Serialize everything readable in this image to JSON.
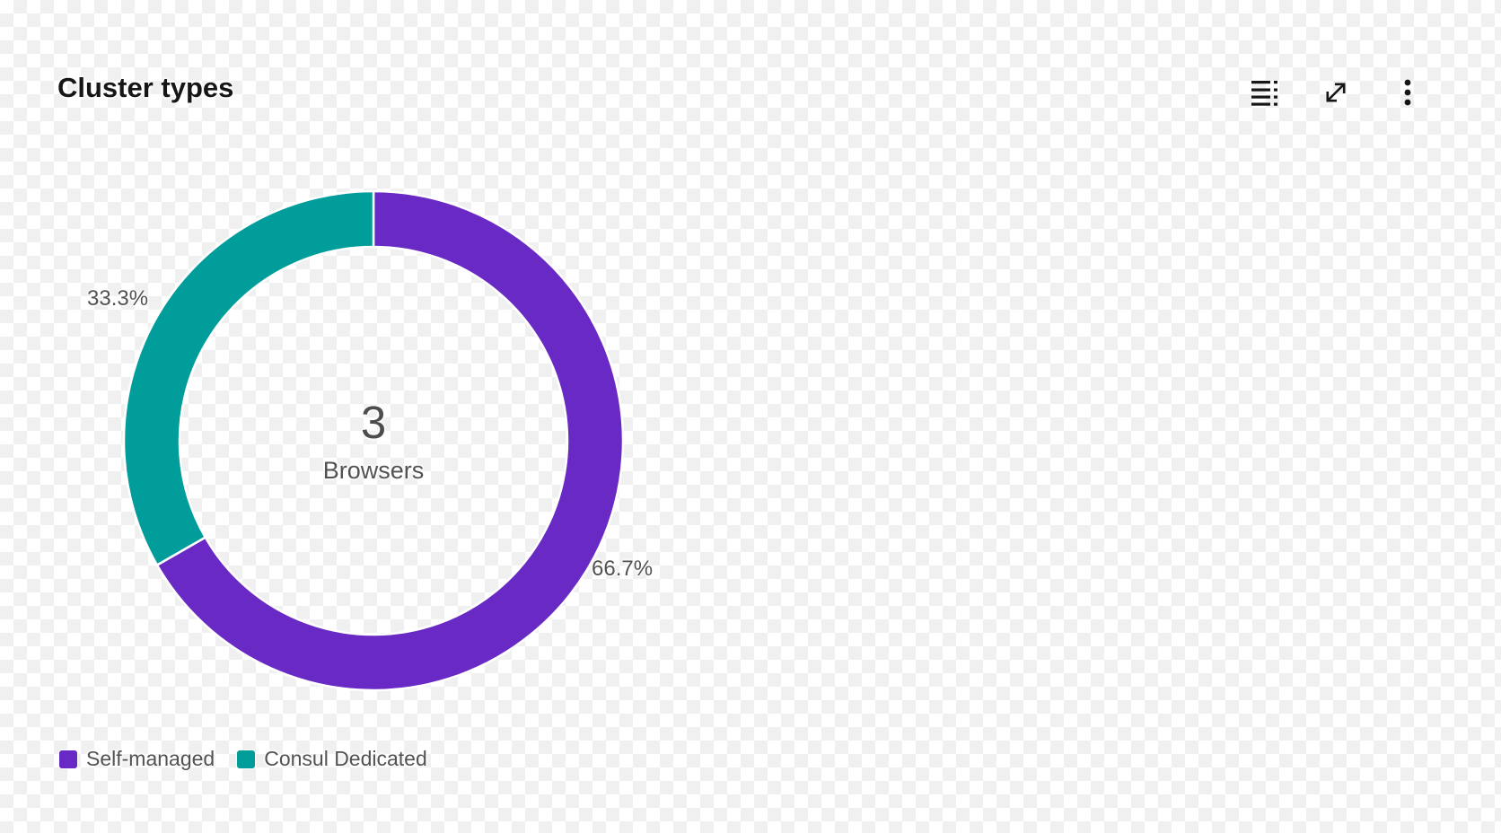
{
  "header": {
    "title": "Cluster types",
    "toolbar_icons": [
      "data-table-icon",
      "expand-icon",
      "overflow-menu-icon"
    ]
  },
  "colors": {
    "purple": "#6929c4",
    "teal": "#009d9a",
    "title_text": "#161616",
    "label_text": "#525252",
    "checkerboard_light": "#ffffff",
    "checkerboard_dark": "#f0f0f0"
  },
  "chart_data": {
    "type": "pie",
    "variant": "donut",
    "title": "Cluster types",
    "center": {
      "number": "3",
      "label": "Browsers"
    },
    "series": [
      {
        "name": "Self-managed",
        "percent": 66.7,
        "percent_label": "66.7%",
        "color": "#6929c4"
      },
      {
        "name": "Consul Dedicated",
        "percent": 33.3,
        "percent_label": "33.3%",
        "color": "#009d9a"
      }
    ],
    "start_angle_deg": 0,
    "direction": "clockwise",
    "legend_position": "bottom"
  },
  "legend": {
    "items": [
      {
        "label": "Self-managed"
      },
      {
        "label": "Consul Dedicated"
      }
    ]
  }
}
